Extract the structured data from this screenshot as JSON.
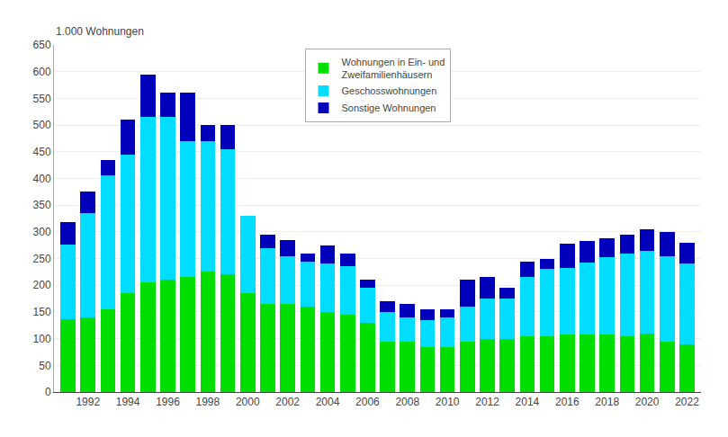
{
  "chart_data": {
    "type": "bar",
    "stacked": true,
    "ylabel": "1.000 Wohnungen",
    "x": [
      1991,
      1992,
      1993,
      1994,
      1995,
      1996,
      1997,
      1998,
      1999,
      2000,
      2001,
      2002,
      2003,
      2004,
      2005,
      2006,
      2007,
      2008,
      2009,
      2010,
      2011,
      2012,
      2013,
      2014,
      2015,
      2016,
      2017,
      2018,
      2019,
      2020,
      2021,
      2022
    ],
    "series": [
      {
        "name": "Wohnungen in Ein- und\nZweifamilienhäusern",
        "color": "#00dd00",
        "values": [
          136,
          140,
          155,
          185,
          205,
          210,
          215,
          225,
          220,
          185,
          165,
          165,
          160,
          150,
          145,
          130,
          95,
          95,
          85,
          85,
          95,
          100,
          100,
          105,
          105,
          108,
          108,
          108,
          105,
          110,
          95,
          90
        ]
      },
      {
        "name": "Geschosswohnungen",
        "color": "#00ddff",
        "values": [
          140,
          195,
          250,
          260,
          310,
          305,
          255,
          245,
          235,
          145,
          105,
          90,
          85,
          90,
          90,
          65,
          55,
          45,
          50,
          55,
          65,
          75,
          75,
          110,
          125,
          125,
          135,
          145,
          155,
          155,
          160,
          150
        ]
      },
      {
        "name": "Sonstige Wohnungen",
        "color": "#0000bb",
        "values": [
          42,
          40,
          30,
          65,
          80,
          45,
          90,
          30,
          45,
          0,
          25,
          30,
          15,
          35,
          25,
          15,
          20,
          25,
          20,
          15,
          50,
          40,
          20,
          30,
          20,
          45,
          40,
          35,
          35,
          40,
          45,
          40
        ]
      }
    ],
    "xlim": [
      1990.3,
      2022.7
    ],
    "xticks": [
      1992,
      1994,
      1996,
      1998,
      2000,
      2002,
      2004,
      2006,
      2008,
      2010,
      2012,
      2014,
      2016,
      2018,
      2020,
      2022
    ],
    "ylim": [
      0,
      650
    ],
    "yticks": [
      0,
      50,
      100,
      150,
      200,
      250,
      300,
      350,
      400,
      450,
      500,
      550,
      600,
      650
    ],
    "grid": true,
    "legend": "upper center"
  }
}
